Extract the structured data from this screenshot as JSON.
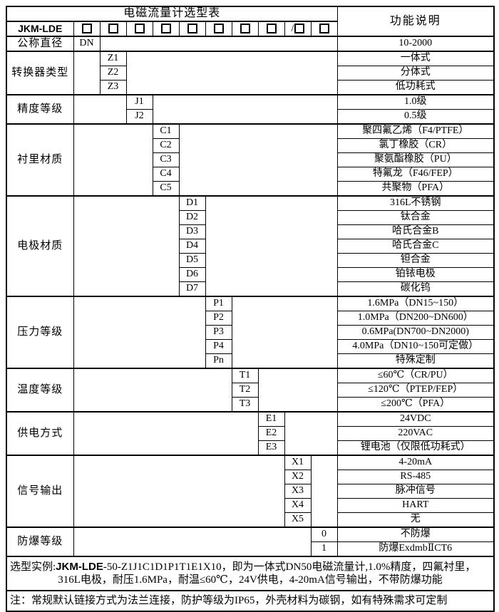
{
  "page": {
    "background": "#ffffff",
    "border_color": "#000000",
    "text_color": "#000000"
  },
  "header": {
    "table_title": "电磁流量计选型表",
    "function_title": "功能说明",
    "model_prefix": "JKM-LDE",
    "checkbox_prefixes": [
      "",
      "",
      "",
      "",
      "",
      "",
      "",
      "",
      "/",
      ""
    ]
  },
  "sections": [
    {
      "label": "公称直径",
      "col": 1,
      "items": [
        {
          "code": "DN",
          "desc": "10-2000"
        }
      ]
    },
    {
      "label": "转换器类型",
      "col": 2,
      "items": [
        {
          "code": "Z1",
          "desc": "一体式"
        },
        {
          "code": "Z2",
          "desc": "分体式"
        },
        {
          "code": "Z3",
          "desc": "低功耗式"
        }
      ]
    },
    {
      "label": "精度等级",
      "col": 3,
      "items": [
        {
          "code": "J1",
          "desc": "1.0级"
        },
        {
          "code": "J2",
          "desc": "0.5级"
        }
      ]
    },
    {
      "label": "衬里材质",
      "col": 4,
      "items": [
        {
          "code": "C1",
          "desc": "聚四氟乙烯（F4/PTFE）"
        },
        {
          "code": "C2",
          "desc": "氯丁橡胶（CR）"
        },
        {
          "code": "C3",
          "desc": "聚氨酯橡胶（PU）"
        },
        {
          "code": "C4",
          "desc": "特氟龙（F46/FEP）"
        },
        {
          "code": "C5",
          "desc": "共聚物（PFA）"
        }
      ]
    },
    {
      "label": "电极材质",
      "col": 5,
      "items": [
        {
          "code": "D1",
          "desc": "316L不锈钢"
        },
        {
          "code": "D2",
          "desc": "钛合金"
        },
        {
          "code": "D3",
          "desc": "哈氏合金B"
        },
        {
          "code": "D4",
          "desc": "哈氏合金C"
        },
        {
          "code": "D5",
          "desc": "钽合金"
        },
        {
          "code": "D6",
          "desc": "铂铱电极"
        },
        {
          "code": "D7",
          "desc": "碳化钨"
        }
      ]
    },
    {
      "label": "压力等级",
      "col": 6,
      "items": [
        {
          "code": "P1",
          "desc": "1.6MPa（DN15~150）"
        },
        {
          "code": "P2",
          "desc": "1.0MPa（DN200~DN600）"
        },
        {
          "code": "P3",
          "desc": "0.6MPa(DN700~DN2000)"
        },
        {
          "code": "P4",
          "desc": "4.0MPa（DN10~150可定做）"
        },
        {
          "code": "Pn",
          "desc": "特殊定制"
        }
      ]
    },
    {
      "label": "温度等级",
      "col": 7,
      "items": [
        {
          "code": "T1",
          "desc": "≤60℃（CR/PU）"
        },
        {
          "code": "T2",
          "desc": "≤120℃（PTEP/FEP）"
        },
        {
          "code": "T3",
          "desc": "≤200℃（PFA）"
        }
      ]
    },
    {
      "label": "供电方式",
      "col": 8,
      "items": [
        {
          "code": "E1",
          "desc": "24VDC"
        },
        {
          "code": "E2",
          "desc": "220VAC"
        },
        {
          "code": "E3",
          "desc": "锂电池（仅限低功耗式）"
        }
      ]
    },
    {
      "label": "信号输出",
      "col": 9,
      "items": [
        {
          "code": "X1",
          "desc": "4-20mA"
        },
        {
          "code": "X2",
          "desc": "RS-485"
        },
        {
          "code": "X3",
          "desc": "脉冲信号"
        },
        {
          "code": "X4",
          "desc": "HART"
        },
        {
          "code": "X5",
          "desc": "无"
        }
      ]
    },
    {
      "label": "防爆等级",
      "col": 10,
      "items": [
        {
          "code": "0",
          "desc": "不防爆"
        },
        {
          "code": "1",
          "desc": "防爆ExdmbⅡCT6"
        }
      ]
    }
  ],
  "footer": {
    "example_label": "选型实例:",
    "example_model": "JKM-LDE",
    "example_line1_rest": "-50-Z1J1C1D1P1T1E1X10，即为一体式DN50电磁流量计,1.0%精度，四氟衬里，",
    "example_line2": "316L电极，耐压1.6MPa，耐温≤60℃，24V供电，4-20mA信号输出，不带防爆功能",
    "note": "注：常规默认链接方式为法兰连接，防护等级为IP65，外壳材料为碳钢，如有特殊需求可定制"
  }
}
